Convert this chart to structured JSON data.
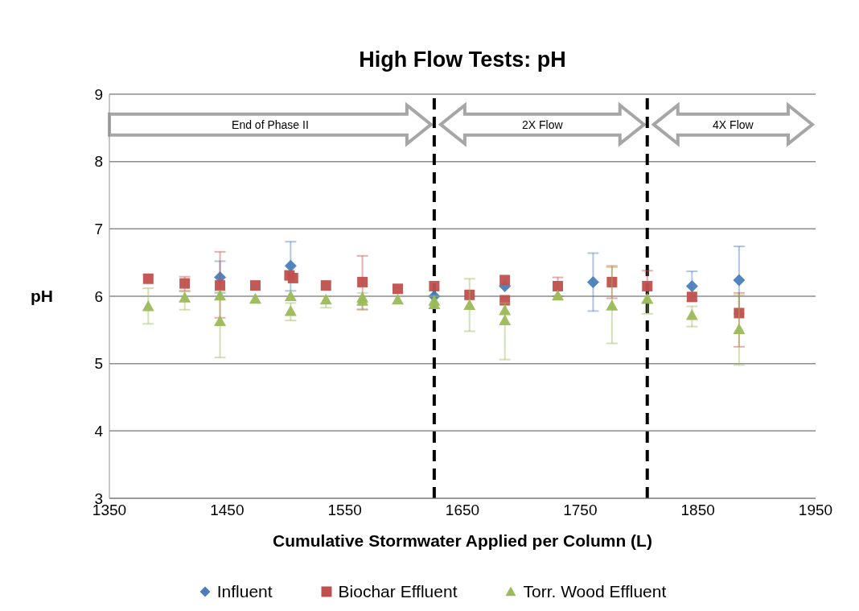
{
  "chart_data": {
    "type": "scatter",
    "title": "High Flow Tests: pH",
    "xlabel": "Cumulative Stormwater Applied per Column (L)",
    "ylabel": "pH",
    "xlim": [
      1350,
      1950
    ],
    "xticks": [
      1350,
      1450,
      1550,
      1650,
      1750,
      1850,
      1950
    ],
    "ylim": [
      3,
      9
    ],
    "yticks": [
      3,
      4,
      5,
      6,
      7,
      8,
      9
    ],
    "grid": "y",
    "legend": "bottom",
    "ref_lines": [
      {
        "axis": "x",
        "value": 1626,
        "color": "#000000",
        "line_style": "dashed"
      },
      {
        "axis": "x",
        "value": 1807,
        "color": "#000000",
        "line_style": "dashed"
      }
    ],
    "annotations": [
      "End of Phase II",
      "2X Flow",
      "4X Flow"
    ],
    "series": [
      {
        "name": "Influent",
        "color": "#4a7ebb",
        "marker": "diamond",
        "x": [
          1444,
          1504,
          1626,
          1686,
          1761,
          1845,
          1885
        ],
        "values": [
          6.28,
          6.45,
          6.0,
          6.15,
          6.21,
          6.15,
          6.24
        ],
        "errors": [
          [
            6.05,
            6.52
          ],
          [
            6.08,
            6.81
          ],
          null,
          null,
          [
            5.78,
            6.64
          ],
          [
            5.93,
            6.37
          ],
          [
            5.74,
            6.74
          ]
        ]
      },
      {
        "name": "Biochar Effluent",
        "color": "#c0504d",
        "marker": "square",
        "x": [
          1383,
          1414,
          1444,
          1474,
          1503,
          1506,
          1534,
          1565,
          1595,
          1626,
          1656,
          1686,
          1686,
          1731,
          1777,
          1807,
          1845,
          1885
        ],
        "values": [
          6.26,
          6.19,
          6.16,
          6.16,
          6.31,
          6.27,
          6.16,
          6.21,
          6.11,
          6.15,
          6.02,
          6.24,
          5.94,
          6.15,
          6.21,
          6.15,
          5.99,
          5.75
        ],
        "errors": [
          null,
          [
            6.08,
            6.29
          ],
          [
            5.68,
            6.66
          ],
          null,
          null,
          null,
          null,
          [
            5.8,
            6.6
          ],
          null,
          null,
          null,
          null,
          null,
          [
            6.0,
            6.28
          ],
          [
            5.97,
            6.45
          ],
          [
            5.9,
            6.38
          ],
          null,
          [
            5.25,
            6.05
          ]
        ]
      },
      {
        "name": "Torr. Wood Effluent",
        "color": "#9bbb59",
        "marker": "triangle",
        "x": [
          1383,
          1414,
          1444,
          1444,
          1474,
          1504,
          1504,
          1534,
          1565,
          1565,
          1595,
          1626,
          1626,
          1656,
          1686,
          1686,
          1731,
          1777,
          1807,
          1845,
          1885
        ],
        "values": [
          5.85,
          5.98,
          6.01,
          5.63,
          5.96,
          6.0,
          5.78,
          5.95,
          5.98,
          5.93,
          5.95,
          5.93,
          5.88,
          5.87,
          5.79,
          5.64,
          6.01,
          5.86,
          5.96,
          5.72,
          5.51
        ],
        "errors": [
          [
            5.59,
            6.12
          ],
          [
            5.8,
            6.07
          ],
          null,
          [
            5.09,
            6.08
          ],
          null,
          null,
          [
            5.64,
            5.9
          ],
          [
            5.83,
            6.0
          ],
          [
            5.81,
            6.05
          ],
          null,
          null,
          [
            5.82,
            6.0
          ],
          null,
          [
            5.48,
            6.26
          ],
          null,
          [
            5.06,
            5.9
          ],
          null,
          [
            5.3,
            6.43
          ],
          [
            5.74,
            6.0
          ],
          [
            5.55,
            5.85
          ],
          [
            4.98,
            6.02
          ]
        ]
      }
    ]
  }
}
